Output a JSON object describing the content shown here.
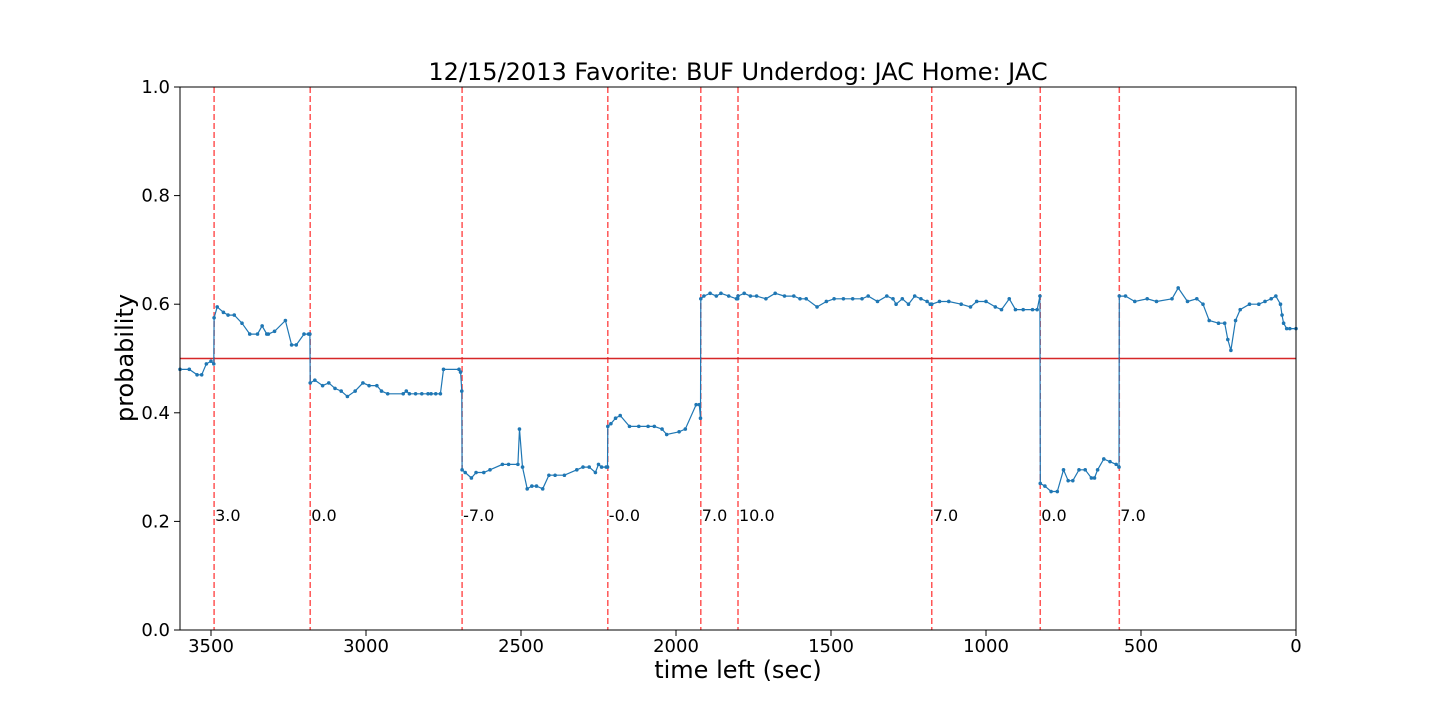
{
  "chart_data": {
    "type": "line",
    "title": "12/15/2013 Favorite: BUF Underdog: JAC Home: JAC",
    "xlabel": "time left (sec)",
    "ylabel": "probability",
    "xlim": [
      3600,
      0
    ],
    "ylim": [
      0.0,
      1.0
    ],
    "x_ticks": [
      3500,
      3000,
      2500,
      2000,
      1500,
      1000,
      500,
      0
    ],
    "y_ticks": [
      0.0,
      0.2,
      0.4,
      0.6,
      0.8,
      1.0
    ],
    "x_tick_labels": [
      "3500",
      "3000",
      "2500",
      "2000",
      "1500",
      "1000",
      "500",
      "0"
    ],
    "y_tick_labels": [
      "0.0",
      "0.2",
      "0.4",
      "0.6",
      "0.8",
      "1.0"
    ],
    "grid": false,
    "colors": {
      "series": "#1f77b4",
      "reference": "#d62728",
      "score_lines": "#ff5555"
    },
    "reference_line": {
      "y": 0.5
    },
    "score_events": [
      {
        "x": 3490,
        "label": "3.0"
      },
      {
        "x": 3180,
        "label": "0.0"
      },
      {
        "x": 2690,
        "label": "-7.0"
      },
      {
        "x": 2220,
        "label": "-0.0"
      },
      {
        "x": 1920,
        "label": "7.0"
      },
      {
        "x": 1800,
        "label": "10.0"
      },
      {
        "x": 1175,
        "label": "7.0"
      },
      {
        "x": 825,
        "label": "0.0"
      },
      {
        "x": 570,
        "label": "7.0"
      }
    ],
    "series": [
      {
        "x": [
          3600,
          3570,
          3545,
          3530,
          3515,
          3500,
          3491,
          3490,
          3480,
          3460,
          3445,
          3425,
          3400,
          3375,
          3350,
          3335,
          3320,
          3315,
          3295,
          3260,
          3240,
          3225,
          3200,
          3185,
          3181,
          3180,
          3165,
          3140,
          3120,
          3100,
          3080,
          3060,
          3035,
          3010,
          2990,
          2965,
          2950,
          2930,
          2880,
          2870,
          2860,
          2840,
          2820,
          2800,
          2790,
          2775,
          2760,
          2750,
          2700,
          2695,
          2691,
          2690,
          2680,
          2660,
          2645,
          2620,
          2600,
          2560,
          2540,
          2510,
          2505,
          2495,
          2480,
          2465,
          2450,
          2430,
          2410,
          2390,
          2360,
          2320,
          2300,
          2280,
          2260,
          2250,
          2240,
          2225,
          2221,
          2220,
          2210,
          2195,
          2180,
          2150,
          2120,
          2090,
          2070,
          2045,
          2030,
          1990,
          1970,
          1935,
          1925,
          1921,
          1920,
          1910,
          1890,
          1870,
          1855,
          1830,
          1805,
          1801,
          1800,
          1780,
          1760,
          1740,
          1710,
          1680,
          1650,
          1620,
          1600,
          1580,
          1545,
          1515,
          1490,
          1460,
          1430,
          1400,
          1380,
          1350,
          1320,
          1300,
          1290,
          1270,
          1250,
          1230,
          1210,
          1190,
          1180,
          1176,
          1175,
          1150,
          1120,
          1080,
          1050,
          1030,
          1000,
          970,
          950,
          925,
          905,
          880,
          850,
          835,
          826,
          825,
          810,
          790,
          770,
          750,
          735,
          720,
          700,
          680,
          660,
          650,
          640,
          620,
          600,
          580,
          571,
          570,
          550,
          520,
          480,
          450,
          400,
          380,
          350,
          320,
          300,
          280,
          250,
          230,
          220,
          210,
          195,
          180,
          150,
          120,
          100,
          80,
          65,
          50,
          45,
          40,
          30,
          20,
          0
        ],
        "y": [
          0.48,
          0.48,
          0.47,
          0.47,
          0.49,
          0.495,
          0.49,
          0.575,
          0.595,
          0.585,
          0.58,
          0.58,
          0.565,
          0.545,
          0.545,
          0.56,
          0.545,
          0.545,
          0.55,
          0.57,
          0.525,
          0.525,
          0.545,
          0.545,
          0.545,
          0.455,
          0.46,
          0.45,
          0.455,
          0.445,
          0.44,
          0.43,
          0.44,
          0.455,
          0.45,
          0.45,
          0.44,
          0.435,
          0.435,
          0.44,
          0.435,
          0.435,
          0.435,
          0.435,
          0.435,
          0.435,
          0.435,
          0.48,
          0.48,
          0.475,
          0.44,
          0.295,
          0.29,
          0.28,
          0.29,
          0.29,
          0.295,
          0.305,
          0.305,
          0.305,
          0.37,
          0.3,
          0.26,
          0.265,
          0.265,
          0.26,
          0.285,
          0.285,
          0.285,
          0.295,
          0.3,
          0.3,
          0.29,
          0.305,
          0.3,
          0.3,
          0.3,
          0.375,
          0.38,
          0.39,
          0.395,
          0.375,
          0.375,
          0.375,
          0.375,
          0.37,
          0.36,
          0.365,
          0.37,
          0.415,
          0.415,
          0.39,
          0.61,
          0.615,
          0.62,
          0.615,
          0.62,
          0.615,
          0.61,
          0.61,
          0.615,
          0.62,
          0.615,
          0.615,
          0.61,
          0.62,
          0.615,
          0.615,
          0.61,
          0.61,
          0.595,
          0.605,
          0.61,
          0.61,
          0.61,
          0.61,
          0.615,
          0.605,
          0.615,
          0.61,
          0.6,
          0.61,
          0.6,
          0.615,
          0.61,
          0.605,
          0.6,
          0.6,
          0.6,
          0.605,
          0.605,
          0.6,
          0.595,
          0.605,
          0.605,
          0.595,
          0.59,
          0.61,
          0.59,
          0.59,
          0.59,
          0.59,
          0.615,
          0.27,
          0.265,
          0.255,
          0.255,
          0.295,
          0.275,
          0.275,
          0.295,
          0.295,
          0.28,
          0.28,
          0.295,
          0.315,
          0.31,
          0.305,
          0.3,
          0.615,
          0.615,
          0.605,
          0.61,
          0.605,
          0.61,
          0.63,
          0.605,
          0.61,
          0.6,
          0.57,
          0.565,
          0.565,
          0.535,
          0.515,
          0.57,
          0.59,
          0.6,
          0.6,
          0.605,
          0.61,
          0.615,
          0.6,
          0.58,
          0.565,
          0.555,
          0.555,
          0.555
        ]
      }
    ]
  }
}
